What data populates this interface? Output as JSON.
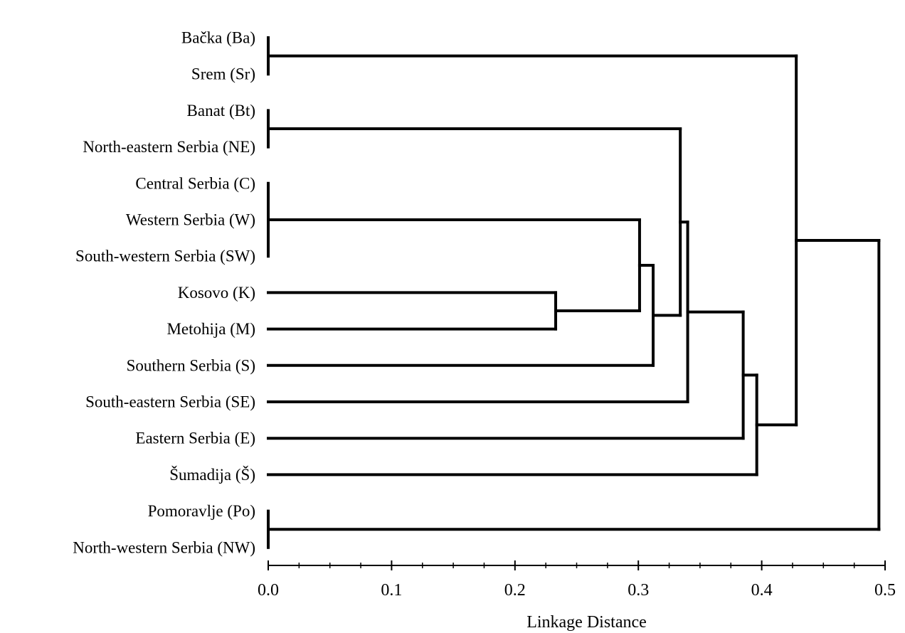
{
  "chart_data": {
    "type": "dendrogram",
    "orientation": "horizontal",
    "leaves": [
      {
        "id": "Ba",
        "label": "Bačka (Ba)"
      },
      {
        "id": "Sr",
        "label": "Srem (Sr)"
      },
      {
        "id": "Bt",
        "label": "Banat (Bt)"
      },
      {
        "id": "NE",
        "label": "North-eastern Serbia (NE)"
      },
      {
        "id": "C",
        "label": "Central Serbia (C)"
      },
      {
        "id": "W",
        "label": "Western Serbia (W)"
      },
      {
        "id": "SW",
        "label": "South-western Serbia (SW)"
      },
      {
        "id": "K",
        "label": "Kosovo (K)"
      },
      {
        "id": "M",
        "label": "Metohija (M)"
      },
      {
        "id": "S",
        "label": "Southern Serbia (S)"
      },
      {
        "id": "SE",
        "label": "South-eastern Serbia (SE)"
      },
      {
        "id": "E",
        "label": "Eastern Serbia (E)"
      },
      {
        "id": "Š",
        "label": "Šumadija (Š)"
      },
      {
        "id": "Po",
        "label": "Pomoravlje (Po)"
      },
      {
        "id": "NW",
        "label": "North-western Serbia (NW)"
      }
    ],
    "merges": [
      {
        "id": "n1",
        "children": [
          "Ba",
          "Sr"
        ],
        "height": 0.0
      },
      {
        "id": "n2",
        "children": [
          "Bt",
          "NE"
        ],
        "height": 0.0
      },
      {
        "id": "n3",
        "children": [
          "C",
          "W",
          "SW"
        ],
        "height": 0.0
      },
      {
        "id": "n4",
        "children": [
          "Po",
          "NW"
        ],
        "height": 0.0
      },
      {
        "id": "n5",
        "children": [
          "K",
          "M"
        ],
        "height": 0.233
      },
      {
        "id": "n6",
        "children": [
          "n3",
          "n5"
        ],
        "height": 0.301
      },
      {
        "id": "n7",
        "children": [
          "n6",
          "S"
        ],
        "height": 0.312
      },
      {
        "id": "n8",
        "children": [
          "n2",
          "n7"
        ],
        "height": 0.334
      },
      {
        "id": "n9",
        "children": [
          "n8",
          "SE"
        ],
        "height": 0.34
      },
      {
        "id": "n10",
        "children": [
          "n9",
          "E"
        ],
        "height": 0.385
      },
      {
        "id": "n11",
        "children": [
          "n10",
          "Š"
        ],
        "height": 0.396
      },
      {
        "id": "n12",
        "children": [
          "n1",
          "n11"
        ],
        "height": 0.428
      },
      {
        "id": "n13",
        "children": [
          "n12",
          "n4"
        ],
        "height": 0.495
      }
    ],
    "xlabel": "Linkage Distance",
    "xlim": [
      0.0,
      0.5
    ],
    "xticks": [
      "0.0",
      "0.1",
      "0.2",
      "0.3",
      "0.4",
      "0.5"
    ],
    "minor_tick_step": 0.025,
    "grid": false
  }
}
